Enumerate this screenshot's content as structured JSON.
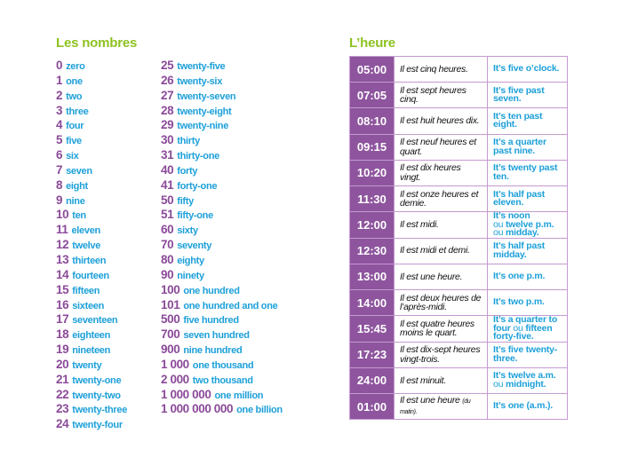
{
  "colors": {
    "title": "#8dc21f",
    "number": "#8b4a99",
    "english": "#1da0d9",
    "time_bg": "#8e559e",
    "table_border": "#c49ad0"
  },
  "numbers": {
    "title": "Les nombres",
    "column1": [
      {
        "num": "0",
        "word": "zero"
      },
      {
        "num": "1",
        "word": "one"
      },
      {
        "num": "2",
        "word": "two"
      },
      {
        "num": "3",
        "word": "three"
      },
      {
        "num": "4",
        "word": "four"
      },
      {
        "num": "5",
        "word": "five"
      },
      {
        "num": "6",
        "word": "six"
      },
      {
        "num": "7",
        "word": "seven"
      },
      {
        "num": "8",
        "word": "eight"
      },
      {
        "num": "9",
        "word": "nine"
      },
      {
        "num": "10",
        "word": "ten"
      },
      {
        "num": "11",
        "word": "eleven"
      },
      {
        "num": "12",
        "word": "twelve"
      },
      {
        "num": "13",
        "word": "thirteen"
      },
      {
        "num": "14",
        "word": "fourteen"
      },
      {
        "num": "15",
        "word": "fifteen"
      },
      {
        "num": "16",
        "word": "sixteen"
      },
      {
        "num": "17",
        "word": "seventeen"
      },
      {
        "num": "18",
        "word": "eighteen"
      },
      {
        "num": "19",
        "word": "nineteen"
      },
      {
        "num": "20",
        "word": "twenty"
      },
      {
        "num": "21",
        "word": "twenty-one"
      },
      {
        "num": "22",
        "word": "twenty-two"
      },
      {
        "num": "23",
        "word": "twenty-three"
      },
      {
        "num": "24",
        "word": "twenty-four"
      }
    ],
    "column2": [
      {
        "num": "25",
        "word": "twenty-five"
      },
      {
        "num": "26",
        "word": "twenty-six"
      },
      {
        "num": "27",
        "word": "twenty-seven"
      },
      {
        "num": "28",
        "word": "twenty-eight"
      },
      {
        "num": "29",
        "word": "twenty-nine"
      },
      {
        "num": "30",
        "word": "thirty"
      },
      {
        "num": "31",
        "word": "thirty-one"
      },
      {
        "num": "40",
        "word": "forty"
      },
      {
        "num": "41",
        "word": "forty-one"
      },
      {
        "num": "50",
        "word": "fifty"
      },
      {
        "num": "51",
        "word": "fifty-one"
      },
      {
        "num": "60",
        "word": "sixty"
      },
      {
        "num": "70",
        "word": "seventy"
      },
      {
        "num": "80",
        "word": "eighty"
      },
      {
        "num": "90",
        "word": "ninety"
      },
      {
        "num": "100",
        "word": "one hundred"
      },
      {
        "num": "101",
        "word": "one hundred and one"
      },
      {
        "num": "500",
        "word": "five hundred"
      },
      {
        "num": "700",
        "word": "seven hundred"
      },
      {
        "num": "900",
        "word": "nine hundred"
      },
      {
        "num": "1 000",
        "word": "one thousand"
      },
      {
        "num": "2 000",
        "word": "two thousand"
      },
      {
        "num": "1 000 000",
        "word": "one million"
      },
      {
        "num": "1 000 000 000",
        "word": "one billion"
      }
    ]
  },
  "time": {
    "title": "L’heure",
    "rows": [
      {
        "time": "05:00",
        "fr": "Il est cinq heures.",
        "en": [
          "It’s five o’clock."
        ]
      },
      {
        "time": "07:05",
        "fr": "Il est sept heures cinq.",
        "en": [
          "It’s five past seven."
        ]
      },
      {
        "time": "08:10",
        "fr": "Il est huit heures dix.",
        "en": [
          "It’s ten past eight."
        ]
      },
      {
        "time": "09:15",
        "fr": "Il est neuf heures et quart.",
        "en": [
          "It’s a quarter past nine."
        ]
      },
      {
        "time": "10:20",
        "fr": "Il est dix heures vingt.",
        "en": [
          "It’s twenty past ten."
        ]
      },
      {
        "time": "11:30",
        "fr": "Il est onze heures et demie.",
        "en": [
          "It’s half past eleven."
        ]
      },
      {
        "time": "12:00",
        "fr": "Il est midi.",
        "en": [
          "It’s noon",
          "twelve p.m.",
          "midday."
        ]
      },
      {
        "time": "12:30",
        "fr": "Il est midi et demi.",
        "en": [
          "It’s half past midday."
        ]
      },
      {
        "time": "13:00",
        "fr": "Il est une heure.",
        "en": [
          "It’s one p.m."
        ]
      },
      {
        "time": "14:00",
        "fr": "Il est deux heures de l’après-midi.",
        "en": [
          "It’s two p.m."
        ]
      },
      {
        "time": "15:45",
        "fr": "Il est quatre heures moins le quart.",
        "en": [
          "It’s a quarter to four",
          "fifteen forty-five."
        ]
      },
      {
        "time": "17:23",
        "fr": "Il est dix-sept heures vingt-trois.",
        "en": [
          "It’s five twenty-three."
        ]
      },
      {
        "time": "24:00",
        "fr": "Il est minuit.",
        "en": [
          "It’s twelve a.m.",
          "midnight."
        ]
      },
      {
        "time": "01:00",
        "fr": "Il est une heure",
        "fr_small": "(du matin).",
        "en": [
          "It’s one (a.m.)."
        ]
      }
    ],
    "connector": "ou"
  }
}
